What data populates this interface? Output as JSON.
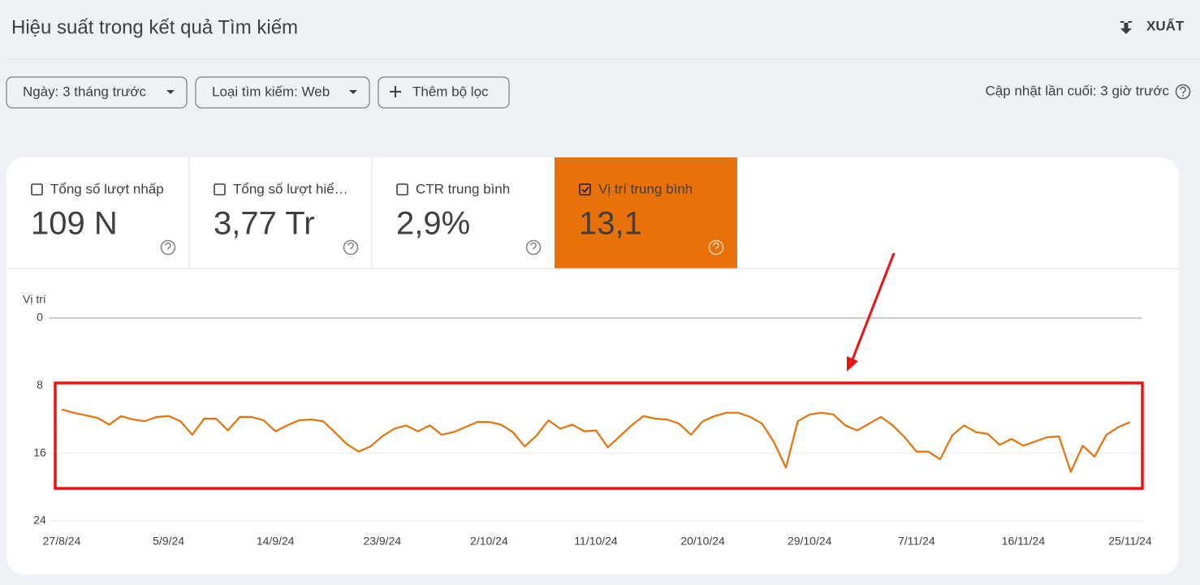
{
  "header": {
    "title": "Hiệu suất trong kết quả Tìm kiếm",
    "export": "XUẤT"
  },
  "filters": [
    "Ngày: 3 tháng trước",
    "Loại tìm kiếm: Web",
    "Thêm bộ lọc"
  ],
  "last_updated": "Cập nhật lần cuối: 3 giờ trước",
  "metrics": [
    {
      "label": "Tổng số lượt nhấp",
      "value": "109 N",
      "checked": false
    },
    {
      "label": "Tổng số lượt hiể…",
      "value": "3,77 Tr",
      "checked": false
    },
    {
      "label": "CTR trung bình",
      "value": "2,9%",
      "checked": false
    },
    {
      "label": "Vị trí trung bình",
      "value": "13,1",
      "checked": true
    }
  ],
  "chart_data": {
    "type": "line",
    "y_label": "Vị trí",
    "color": "#e8710a",
    "categories": [
      "27/8/24",
      null,
      null,
      null,
      null,
      null,
      null,
      null,
      null,
      "5/9/24",
      null,
      null,
      null,
      null,
      null,
      null,
      null,
      null,
      "14/9/24",
      null,
      null,
      null,
      null,
      null,
      null,
      null,
      null,
      "23/9/24",
      null,
      null,
      null,
      null,
      null,
      null,
      null,
      null,
      "2/10/24",
      null,
      null,
      null,
      null,
      null,
      null,
      null,
      null,
      "11/10/24",
      null,
      null,
      null,
      null,
      null,
      null,
      null,
      null,
      "20/10/24",
      null,
      null,
      null,
      null,
      null,
      null,
      null,
      null,
      "29/10/24",
      null,
      null,
      null,
      null,
      null,
      null,
      null,
      null,
      "7/11/24",
      null,
      null,
      null,
      null,
      null,
      null,
      null,
      null,
      "16/11/24",
      null,
      null,
      null,
      null,
      null,
      null,
      null,
      null,
      "25/11/24"
    ],
    "values": [
      10.8,
      11.2,
      11.5,
      11.8,
      12.6,
      11.6,
      12.0,
      12.2,
      11.7,
      11.6,
      12.2,
      13.8,
      11.9,
      11.9,
      13.3,
      11.7,
      11.7,
      12.1,
      13.4,
      12.7,
      12.1,
      12.0,
      12.2,
      13.5,
      14.9,
      15.8,
      15.2,
      14.0,
      13.1,
      12.7,
      13.4,
      12.7,
      13.8,
      13.5,
      12.9,
      12.3,
      12.3,
      12.6,
      13.5,
      15.2,
      13.9,
      12.1,
      13.1,
      12.6,
      13.4,
      13.3,
      15.3,
      14.0,
      12.7,
      11.6,
      11.9,
      12.0,
      12.5,
      13.8,
      12.2,
      11.6,
      11.2,
      11.2,
      11.7,
      12.5,
      14.7,
      17.7,
      12.2,
      11.4,
      11.2,
      11.4,
      12.7,
      13.3,
      12.5,
      11.7,
      12.7,
      14.1,
      15.8,
      15.8,
      16.7,
      13.9,
      12.7,
      13.5,
      13.7,
      15.0,
      14.3,
      15.1,
      14.6,
      14.1,
      14.0,
      18.2,
      15.1,
      16.4,
      13.8,
      12.9,
      12.3
    ],
    "ylim": [
      0,
      24
    ],
    "y_inverted": true,
    "yticks": [
      0,
      8,
      16,
      24
    ],
    "grid": true
  }
}
